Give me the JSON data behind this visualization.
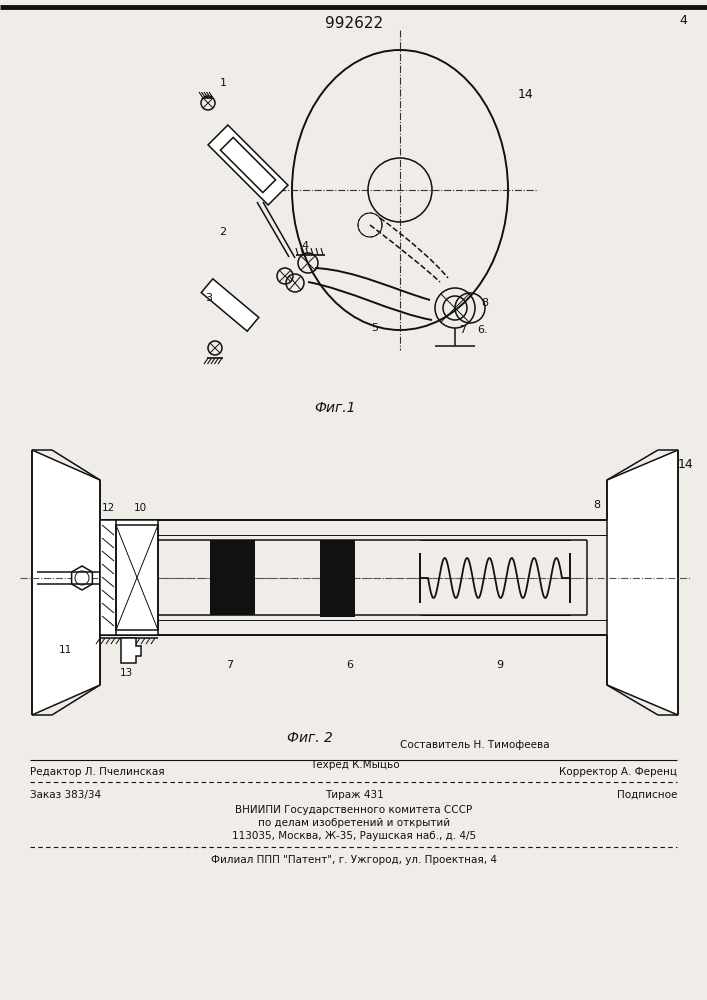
{
  "patent_number": "992622",
  "fig1_caption": "Фиг.1",
  "fig2_caption": "Фиг. 2",
  "footer_sestavitel": "Составитель Н. Тимофеева",
  "footer_redaktor": "Редактор Л. Пчелинская",
  "footer_tehred": "Техред К.Мыцьо",
  "footer_korrektor": "Корректор А. Ференц",
  "footer_zakaz": "Заказ 383/34",
  "footer_tirazh": "Тираж 431",
  "footer_podpisnoe": "Подписное",
  "footer_vniip1": "ВНИИПИ Государственного комитета СССР",
  "footer_vniip2": "по делам изобретений и открытий",
  "footer_vniip3": "113035, Москва, Ж-35, Раушская наб., д. 4/5",
  "footer_filial": "Филиал ППП \"Патент\", г. Ужгород, ул. Проектная, 4",
  "bg_color": "#f0ede8",
  "line_color": "#111111",
  "text_color": "#111111"
}
